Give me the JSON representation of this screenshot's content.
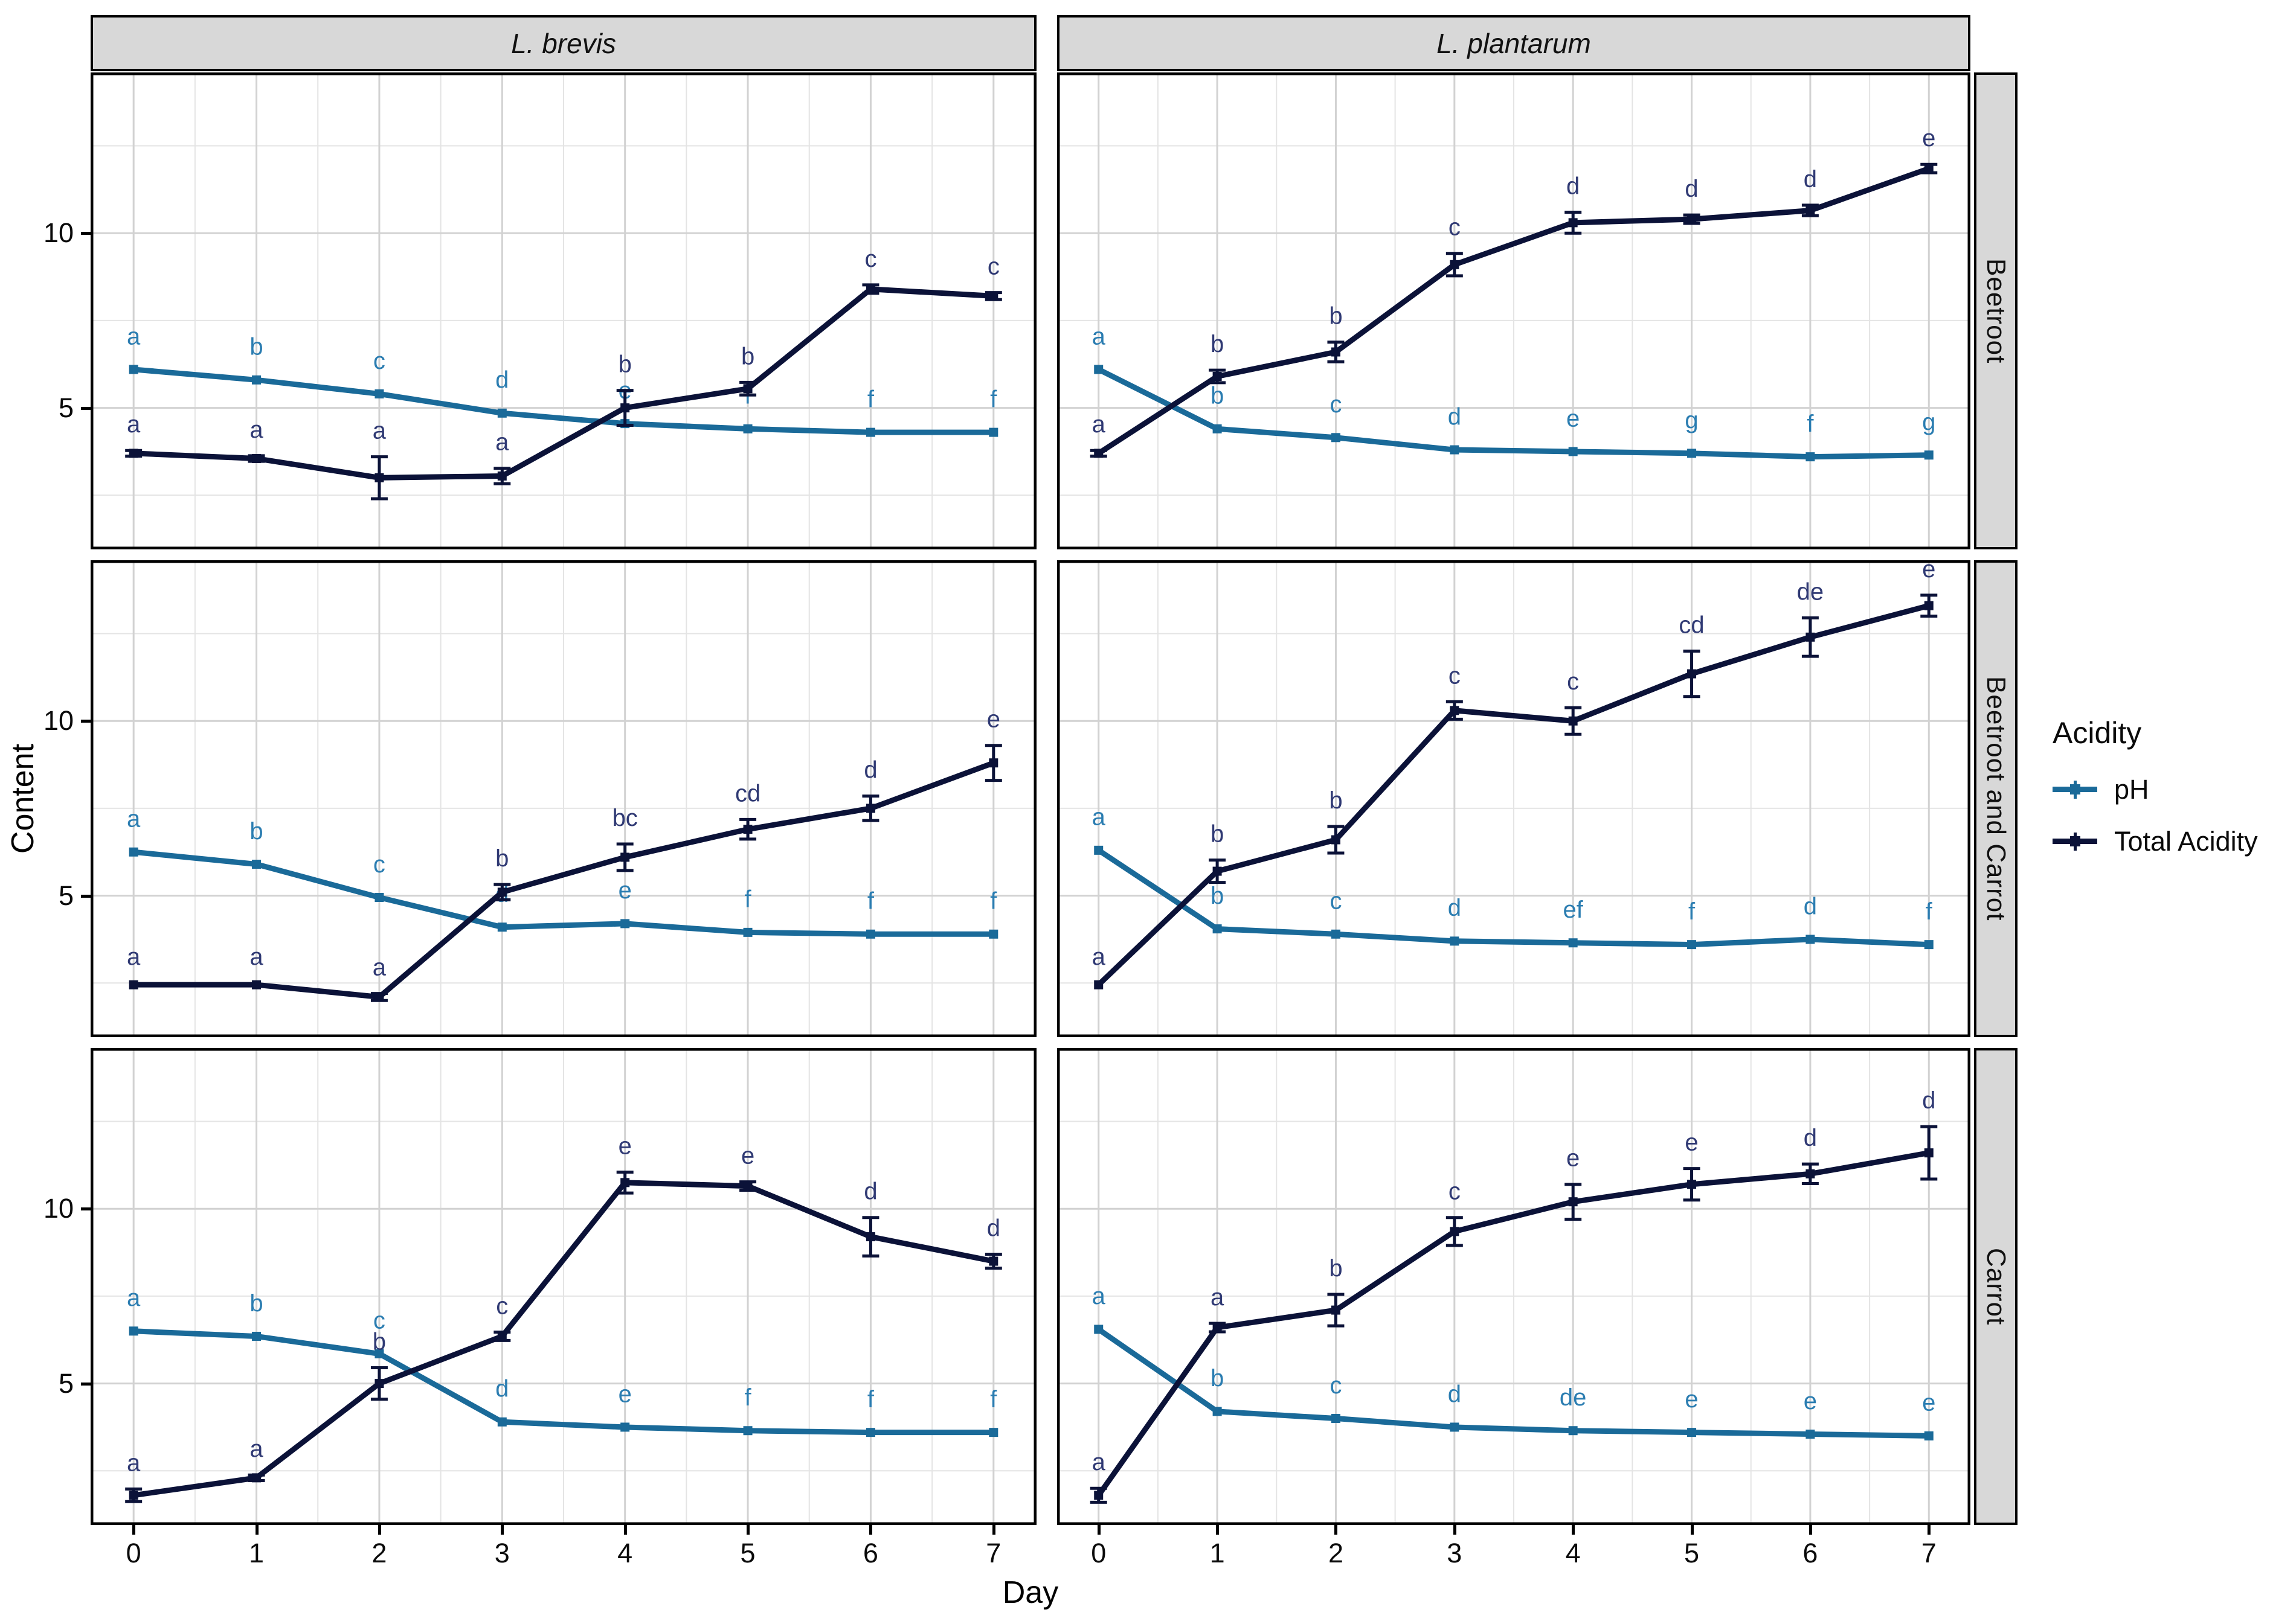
{
  "figure": {
    "description": "Faceted line chart of pH and Total Acidity during fermentation"
  },
  "axes": {
    "x": {
      "title": "Day",
      "ticks": [
        "0",
        "1",
        "2",
        "3",
        "4",
        "5",
        "6",
        "7"
      ]
    },
    "y": {
      "title": "Content",
      "ticks": [
        "5",
        "10"
      ]
    }
  },
  "facets": {
    "columns": [
      "L. brevis",
      "L. plantarum"
    ],
    "rows": [
      "Beetroot",
      "Beetroot and Carrot",
      "Carrot"
    ]
  },
  "legend": {
    "title": "Acidity",
    "items": [
      {
        "label": "pH",
        "color": "#1a6a99"
      },
      {
        "label": "Total Acidity",
        "color": "#0b1238"
      }
    ]
  },
  "colors": {
    "ph_line": "#1a6a99",
    "ph_label": "#2b7db1",
    "ta_line": "#0b1238",
    "ta_label": "#303a74",
    "grid_major": "#d2d2d2",
    "grid_minor": "#e4e4e4",
    "panel_border": "#000000",
    "strip_fill": "#d8d8d8"
  },
  "chart_data": {
    "type": "line",
    "x": [
      0,
      1,
      2,
      3,
      4,
      5,
      6,
      7
    ],
    "xlabel": "Day",
    "ylabel": "Content",
    "ylim": [
      0.95,
      14.6
    ],
    "yticks": [
      5,
      10
    ],
    "yticks_minor": [
      2.5,
      7.5,
      12.5
    ],
    "legend_position": "right",
    "grid": true,
    "panels": [
      {
        "facet_col": "L. brevis",
        "facet_row": "Beetroot",
        "series": [
          {
            "name": "pH",
            "values": [
              6.1,
              5.8,
              5.4,
              4.85,
              4.55,
              4.4,
              4.3,
              4.3
            ],
            "errors": [
              0,
              0,
              0,
              0,
              0,
              0,
              0,
              0
            ],
            "labels": [
              "a",
              "b",
              "c",
              "d",
              "e",
              "f",
              "f",
              "f"
            ]
          },
          {
            "name": "Total Acidity",
            "values": [
              3.7,
              3.55,
              3.0,
              3.05,
              5.0,
              5.55,
              8.4,
              8.2
            ],
            "errors": [
              0.08,
              0.08,
              0.6,
              0.22,
              0.5,
              0.18,
              0.12,
              0.1
            ],
            "labels": [
              "a",
              "a",
              "a",
              "a",
              "b",
              "b",
              "c",
              "c"
            ]
          }
        ]
      },
      {
        "facet_col": "L. plantarum",
        "facet_row": "Beetroot",
        "series": [
          {
            "name": "pH",
            "values": [
              6.1,
              4.4,
              4.15,
              3.8,
              3.75,
              3.7,
              3.6,
              3.65
            ],
            "errors": [
              0,
              0,
              0,
              0,
              0,
              0,
              0,
              0
            ],
            "labels": [
              "a",
              "b",
              "c",
              "d",
              "e",
              "g",
              "f",
              "g"
            ]
          },
          {
            "name": "Total Acidity",
            "values": [
              3.7,
              5.9,
              6.6,
              9.1,
              10.3,
              10.4,
              10.65,
              11.85
            ],
            "errors": [
              0.08,
              0.18,
              0.28,
              0.32,
              0.3,
              0.12,
              0.15,
              0.12
            ],
            "labels": [
              "a",
              "b",
              "b",
              "c",
              "d",
              "d",
              "d",
              "e"
            ]
          }
        ]
      },
      {
        "facet_col": "L. brevis",
        "facet_row": "Beetroot and Carrot",
        "series": [
          {
            "name": "pH",
            "values": [
              6.25,
              5.9,
              4.95,
              4.1,
              4.2,
              3.95,
              3.9,
              3.9
            ],
            "errors": [
              0,
              0,
              0,
              0,
              0,
              0,
              0,
              0
            ],
            "labels": [
              "a",
              "b",
              "c",
              "d",
              "e",
              "f",
              "f",
              "f"
            ]
          },
          {
            "name": "Total Acidity",
            "values": [
              2.45,
              2.45,
              2.1,
              5.1,
              6.1,
              6.9,
              7.5,
              8.8
            ],
            "errors": [
              0.05,
              0.05,
              0.1,
              0.22,
              0.38,
              0.28,
              0.35,
              0.5
            ],
            "labels": [
              "a",
              "a",
              "a",
              "b",
              "bc",
              "cd",
              "d",
              "e"
            ]
          }
        ]
      },
      {
        "facet_col": "L. plantarum",
        "facet_row": "Beetroot and Carrot",
        "series": [
          {
            "name": "pH",
            "values": [
              6.3,
              4.05,
              3.9,
              3.7,
              3.65,
              3.6,
              3.75,
              3.6
            ],
            "errors": [
              0,
              0,
              0,
              0,
              0,
              0,
              0,
              0
            ],
            "labels": [
              "a",
              "b",
              "c",
              "d",
              "ef",
              "f",
              "d",
              "f"
            ]
          },
          {
            "name": "Total Acidity",
            "values": [
              2.45,
              5.7,
              6.6,
              10.3,
              10.0,
              11.35,
              12.4,
              13.3
            ],
            "errors": [
              0.05,
              0.32,
              0.38,
              0.25,
              0.38,
              0.65,
              0.55,
              0.3
            ],
            "labels": [
              "a",
              "b",
              "b",
              "c",
              "c",
              "cd",
              "de",
              "e"
            ]
          }
        ]
      },
      {
        "facet_col": "L. brevis",
        "facet_row": "Carrot",
        "series": [
          {
            "name": "pH",
            "values": [
              6.5,
              6.35,
              5.85,
              3.9,
              3.75,
              3.65,
              3.6,
              3.6
            ],
            "errors": [
              0,
              0,
              0,
              0,
              0,
              0,
              0,
              0
            ],
            "labels": [
              "a",
              "b",
              "c",
              "d",
              "e",
              "f",
              "f",
              "f"
            ]
          },
          {
            "name": "Total Acidity",
            "values": [
              1.8,
              2.3,
              5.0,
              6.35,
              10.75,
              10.65,
              9.2,
              8.5
            ],
            "errors": [
              0.18,
              0.08,
              0.45,
              0.12,
              0.3,
              0.12,
              0.55,
              0.2
            ],
            "labels": [
              "a",
              "a",
              "b",
              "c",
              "e",
              "e",
              "d",
              "d"
            ]
          }
        ]
      },
      {
        "facet_col": "L. plantarum",
        "facet_row": "Carrot",
        "series": [
          {
            "name": "pH",
            "values": [
              6.55,
              4.2,
              4.0,
              3.75,
              3.65,
              3.6,
              3.55,
              3.5
            ],
            "errors": [
              0,
              0,
              0,
              0,
              0,
              0,
              0,
              0
            ],
            "labels": [
              "a",
              "b",
              "c",
              "d",
              "de",
              "e",
              "e",
              "e"
            ]
          },
          {
            "name": "Total Acidity",
            "values": [
              1.8,
              6.6,
              7.1,
              9.35,
              10.2,
              10.7,
              11.0,
              11.6
            ],
            "errors": [
              0.2,
              0.12,
              0.45,
              0.4,
              0.5,
              0.45,
              0.28,
              0.75
            ],
            "labels": [
              "a",
              "a",
              "b",
              "c",
              "e",
              "e",
              "d",
              "d"
            ]
          }
        ]
      }
    ]
  }
}
